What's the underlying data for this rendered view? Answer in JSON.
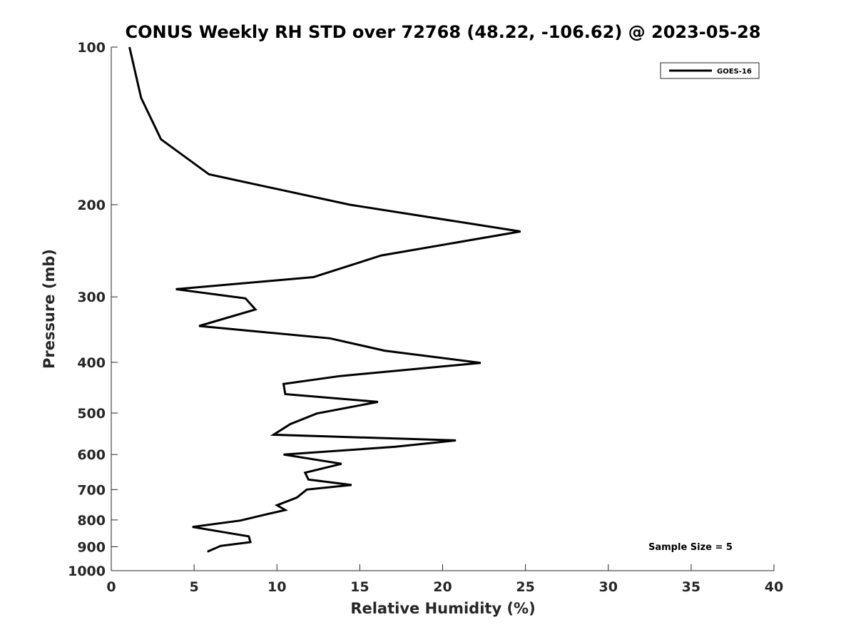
{
  "chart_data": {
    "type": "line",
    "title": "CONUS Weekly RH STD over 72768 (48.22, -106.62) @ 2023-05-28",
    "xlabel": "Relative Humidity (%)",
    "ylabel": "Pressure (mb)",
    "xlim": [
      0,
      40
    ],
    "ylim": [
      100,
      1000
    ],
    "y_scale": "log",
    "y_reversed": true,
    "xticks": [
      0,
      5,
      10,
      15,
      20,
      25,
      30,
      35,
      40
    ],
    "xtick_labels": [
      "0",
      "5",
      "10",
      "15",
      "20",
      "25",
      "30",
      "35",
      "40"
    ],
    "yticks": [
      100,
      200,
      300,
      400,
      500,
      600,
      700,
      800,
      900,
      1000
    ],
    "ytick_labels": [
      "100",
      "200",
      "300",
      "400",
      "500",
      "600",
      "700",
      "800",
      "900",
      "1000"
    ],
    "grid": false,
    "legend_position": "top-right",
    "series": [
      {
        "name": "GOES-16",
        "color": "#000000",
        "points": [
          {
            "x": 1.1,
            "y": 100
          },
          {
            "x": 1.8,
            "y": 125
          },
          {
            "x": 3.0,
            "y": 150
          },
          {
            "x": 5.9,
            "y": 175
          },
          {
            "x": 14.4,
            "y": 200
          },
          {
            "x": 24.7,
            "y": 225
          },
          {
            "x": 16.3,
            "y": 250
          },
          {
            "x": 12.2,
            "y": 275
          },
          {
            "x": 3.9,
            "y": 290
          },
          {
            "x": 8.1,
            "y": 302
          },
          {
            "x": 8.7,
            "y": 317
          },
          {
            "x": 5.3,
            "y": 341
          },
          {
            "x": 13.2,
            "y": 360
          },
          {
            "x": 16.5,
            "y": 380
          },
          {
            "x": 22.3,
            "y": 401
          },
          {
            "x": 13.8,
            "y": 425
          },
          {
            "x": 10.4,
            "y": 440
          },
          {
            "x": 10.5,
            "y": 460
          },
          {
            "x": 16.1,
            "y": 476
          },
          {
            "x": 12.4,
            "y": 501
          },
          {
            "x": 10.8,
            "y": 525
          },
          {
            "x": 9.8,
            "y": 550
          },
          {
            "x": 20.8,
            "y": 564
          },
          {
            "x": 17.1,
            "y": 580
          },
          {
            "x": 10.4,
            "y": 600
          },
          {
            "x": 13.9,
            "y": 625
          },
          {
            "x": 11.7,
            "y": 650
          },
          {
            "x": 11.9,
            "y": 670
          },
          {
            "x": 14.5,
            "y": 686
          },
          {
            "x": 11.8,
            "y": 700
          },
          {
            "x": 11.2,
            "y": 725
          },
          {
            "x": 10.0,
            "y": 750
          },
          {
            "x": 10.5,
            "y": 766
          },
          {
            "x": 9.4,
            "y": 780
          },
          {
            "x": 7.8,
            "y": 802
          },
          {
            "x": 4.9,
            "y": 825
          },
          {
            "x": 8.3,
            "y": 860
          },
          {
            "x": 8.4,
            "y": 882
          },
          {
            "x": 6.6,
            "y": 897
          },
          {
            "x": 5.8,
            "y": 920
          }
        ]
      }
    ],
    "annotation": "Sample Size = 5"
  }
}
